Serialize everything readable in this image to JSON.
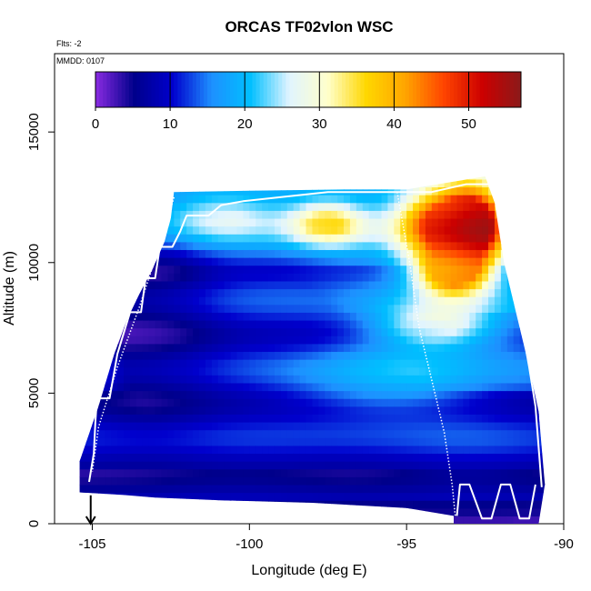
{
  "chart_data": {
    "type": "heatmap",
    "title": "ORCAS TF02vlon WSC",
    "flts_label": "Flts: -2",
    "mmdd_label": "MMDD: 0107",
    "xlabel": "Longitude (deg E)",
    "ylabel": "Altitude (m)",
    "xlim": [
      -106.2,
      -90
    ],
    "ylim": [
      0,
      18000
    ],
    "x_ticks": [
      -105,
      -100,
      -95,
      -90
    ],
    "x_tick_labels": [
      "-105",
      "-100",
      "-95",
      "-90"
    ],
    "y_ticks": [
      0,
      5000,
      10000,
      15000
    ],
    "y_tick_labels": [
      "0",
      "5000",
      "10000",
      "15000"
    ],
    "colorbar": {
      "min": 0,
      "max": 57,
      "ticks": [
        0,
        10,
        20,
        30,
        40,
        50
      ],
      "tick_labels": [
        "0",
        "10",
        "20",
        "30",
        "40",
        "50"
      ],
      "colors": [
        "#8a2be2",
        "#00008b",
        "#0000cd",
        "#1e90ff",
        "#00bfff",
        "#e0f4ff",
        "#ffffcc",
        "#ffd700",
        "#ffa500",
        "#ff4500",
        "#cc0000",
        "#8b1a1a"
      ]
    },
    "domain_top": [
      [
        -105.4,
        2400
      ],
      [
        -104.8,
        4500
      ],
      [
        -104.3,
        6500
      ],
      [
        -103.9,
        7800
      ],
      [
        -103.5,
        8800
      ],
      [
        -103.1,
        9700
      ],
      [
        -102.7,
        10800
      ],
      [
        -102.5,
        11700
      ],
      [
        -102.4,
        12700
      ],
      [
        -100,
        12750
      ],
      [
        -97,
        12800
      ],
      [
        -95,
        12800
      ],
      [
        -93.5,
        13100
      ],
      [
        -92.5,
        13300
      ],
      [
        -92.2,
        12300
      ],
      [
        -91.9,
        10000
      ],
      [
        -91.5,
        8000
      ],
      [
        -91.1,
        6000
      ],
      [
        -90.8,
        4300
      ],
      [
        -90.6,
        1500
      ],
      [
        -90.8,
        0
      ]
    ],
    "domain_bottom": [
      [
        -90.8,
        0
      ],
      [
        -93.5,
        0
      ],
      [
        -93.5,
        300
      ],
      [
        -95,
        600
      ],
      [
        -98,
        800
      ],
      [
        -101,
        900
      ],
      [
        -103,
        1000
      ],
      [
        -104,
        1100
      ],
      [
        -105.4,
        1200
      ]
    ],
    "wind_features": [
      {
        "lon": -103.0,
        "alt": 7500,
        "value": 3,
        "spread_lon": 1.8,
        "spread_alt": 3500
      },
      {
        "lon": -100.5,
        "alt": 5000,
        "value": 10,
        "spread_lon": 3.5,
        "spread_alt": 3500
      },
      {
        "lon": -99.0,
        "alt": 8500,
        "value": 12,
        "spread_lon": 3.0,
        "spread_alt": 2000
      },
      {
        "lon": -101.0,
        "alt": 11800,
        "value": 28,
        "spread_lon": 1.8,
        "spread_alt": 900
      },
      {
        "lon": -97.5,
        "alt": 11500,
        "value": 36,
        "spread_lon": 1.2,
        "spread_alt": 900
      },
      {
        "lon": -94.0,
        "alt": 11500,
        "value": 47,
        "spread_lon": 1.3,
        "spread_alt": 1500
      },
      {
        "lon": -92.8,
        "alt": 11500,
        "value": 55,
        "spread_lon": 1.0,
        "spread_alt": 1500
      },
      {
        "lon": -93.5,
        "alt": 9600,
        "value": 43,
        "spread_lon": 1.2,
        "spread_alt": 900
      },
      {
        "lon": -94.0,
        "alt": 7600,
        "value": 30,
        "spread_lon": 2.0,
        "spread_alt": 900
      },
      {
        "lon": -95.5,
        "alt": 5500,
        "value": 20,
        "spread_lon": 3.0,
        "spread_alt": 1300
      },
      {
        "lon": -93.0,
        "alt": 3000,
        "value": 11,
        "spread_lon": 2.5,
        "spread_alt": 1500
      }
    ],
    "flight_track_left": [
      [
        -105.1,
        1600
      ],
      [
        -104.95,
        2700
      ],
      [
        -104.9,
        3900
      ],
      [
        -104.85,
        4800
      ],
      [
        -104.45,
        4800
      ],
      [
        -104.2,
        6500
      ],
      [
        -103.8,
        8100
      ],
      [
        -103.45,
        8100
      ],
      [
        -103.3,
        9400
      ],
      [
        -103.0,
        9400
      ],
      [
        -102.85,
        10600
      ],
      [
        -102.45,
        10600
      ],
      [
        -102.2,
        11200
      ],
      [
        -102.0,
        11800
      ],
      [
        -101.3,
        11800
      ],
      [
        -100.9,
        12200
      ],
      [
        -100.2,
        12350
      ],
      [
        -97.5,
        12700
      ],
      [
        -95.0,
        12700
      ],
      [
        -94.2,
        12700
      ],
      [
        -93.1,
        13000
      ],
      [
        -92.3,
        13000
      ],
      [
        -92.0,
        12000
      ],
      [
        -91.8,
        10000
      ],
      [
        -91.4,
        8000
      ],
      [
        -91.1,
        6000
      ],
      [
        -90.9,
        4500
      ],
      [
        -90.7,
        1400
      ]
    ],
    "flight_track_right": [
      [
        -93.4,
        300
      ],
      [
        -93.3,
        1500
      ],
      [
        -93.0,
        1500
      ],
      [
        -92.6,
        200
      ],
      [
        -92.3,
        200
      ],
      [
        -92.0,
        1500
      ],
      [
        -91.7,
        1500
      ],
      [
        -91.4,
        200
      ],
      [
        -91.1,
        200
      ],
      [
        -90.9,
        1500
      ]
    ],
    "flight_track_vertical_left": [
      [
        -102.4,
        12500
      ],
      [
        -102.9,
        10500
      ],
      [
        -103.5,
        8300
      ],
      [
        -104.2,
        6000
      ],
      [
        -104.8,
        3700
      ],
      [
        -105.0,
        2000
      ]
    ],
    "flight_track_vertical_right": [
      [
        -95.3,
        12700
      ],
      [
        -94.9,
        10000
      ],
      [
        -94.6,
        7500
      ],
      [
        -94.1,
        5000
      ],
      [
        -93.8,
        3500
      ],
      [
        -93.55,
        1500
      ],
      [
        -93.45,
        300
      ]
    ],
    "arrow_marker": {
      "lon": -105.05,
      "alt_top": 600,
      "alt_bottom": 0
    }
  }
}
